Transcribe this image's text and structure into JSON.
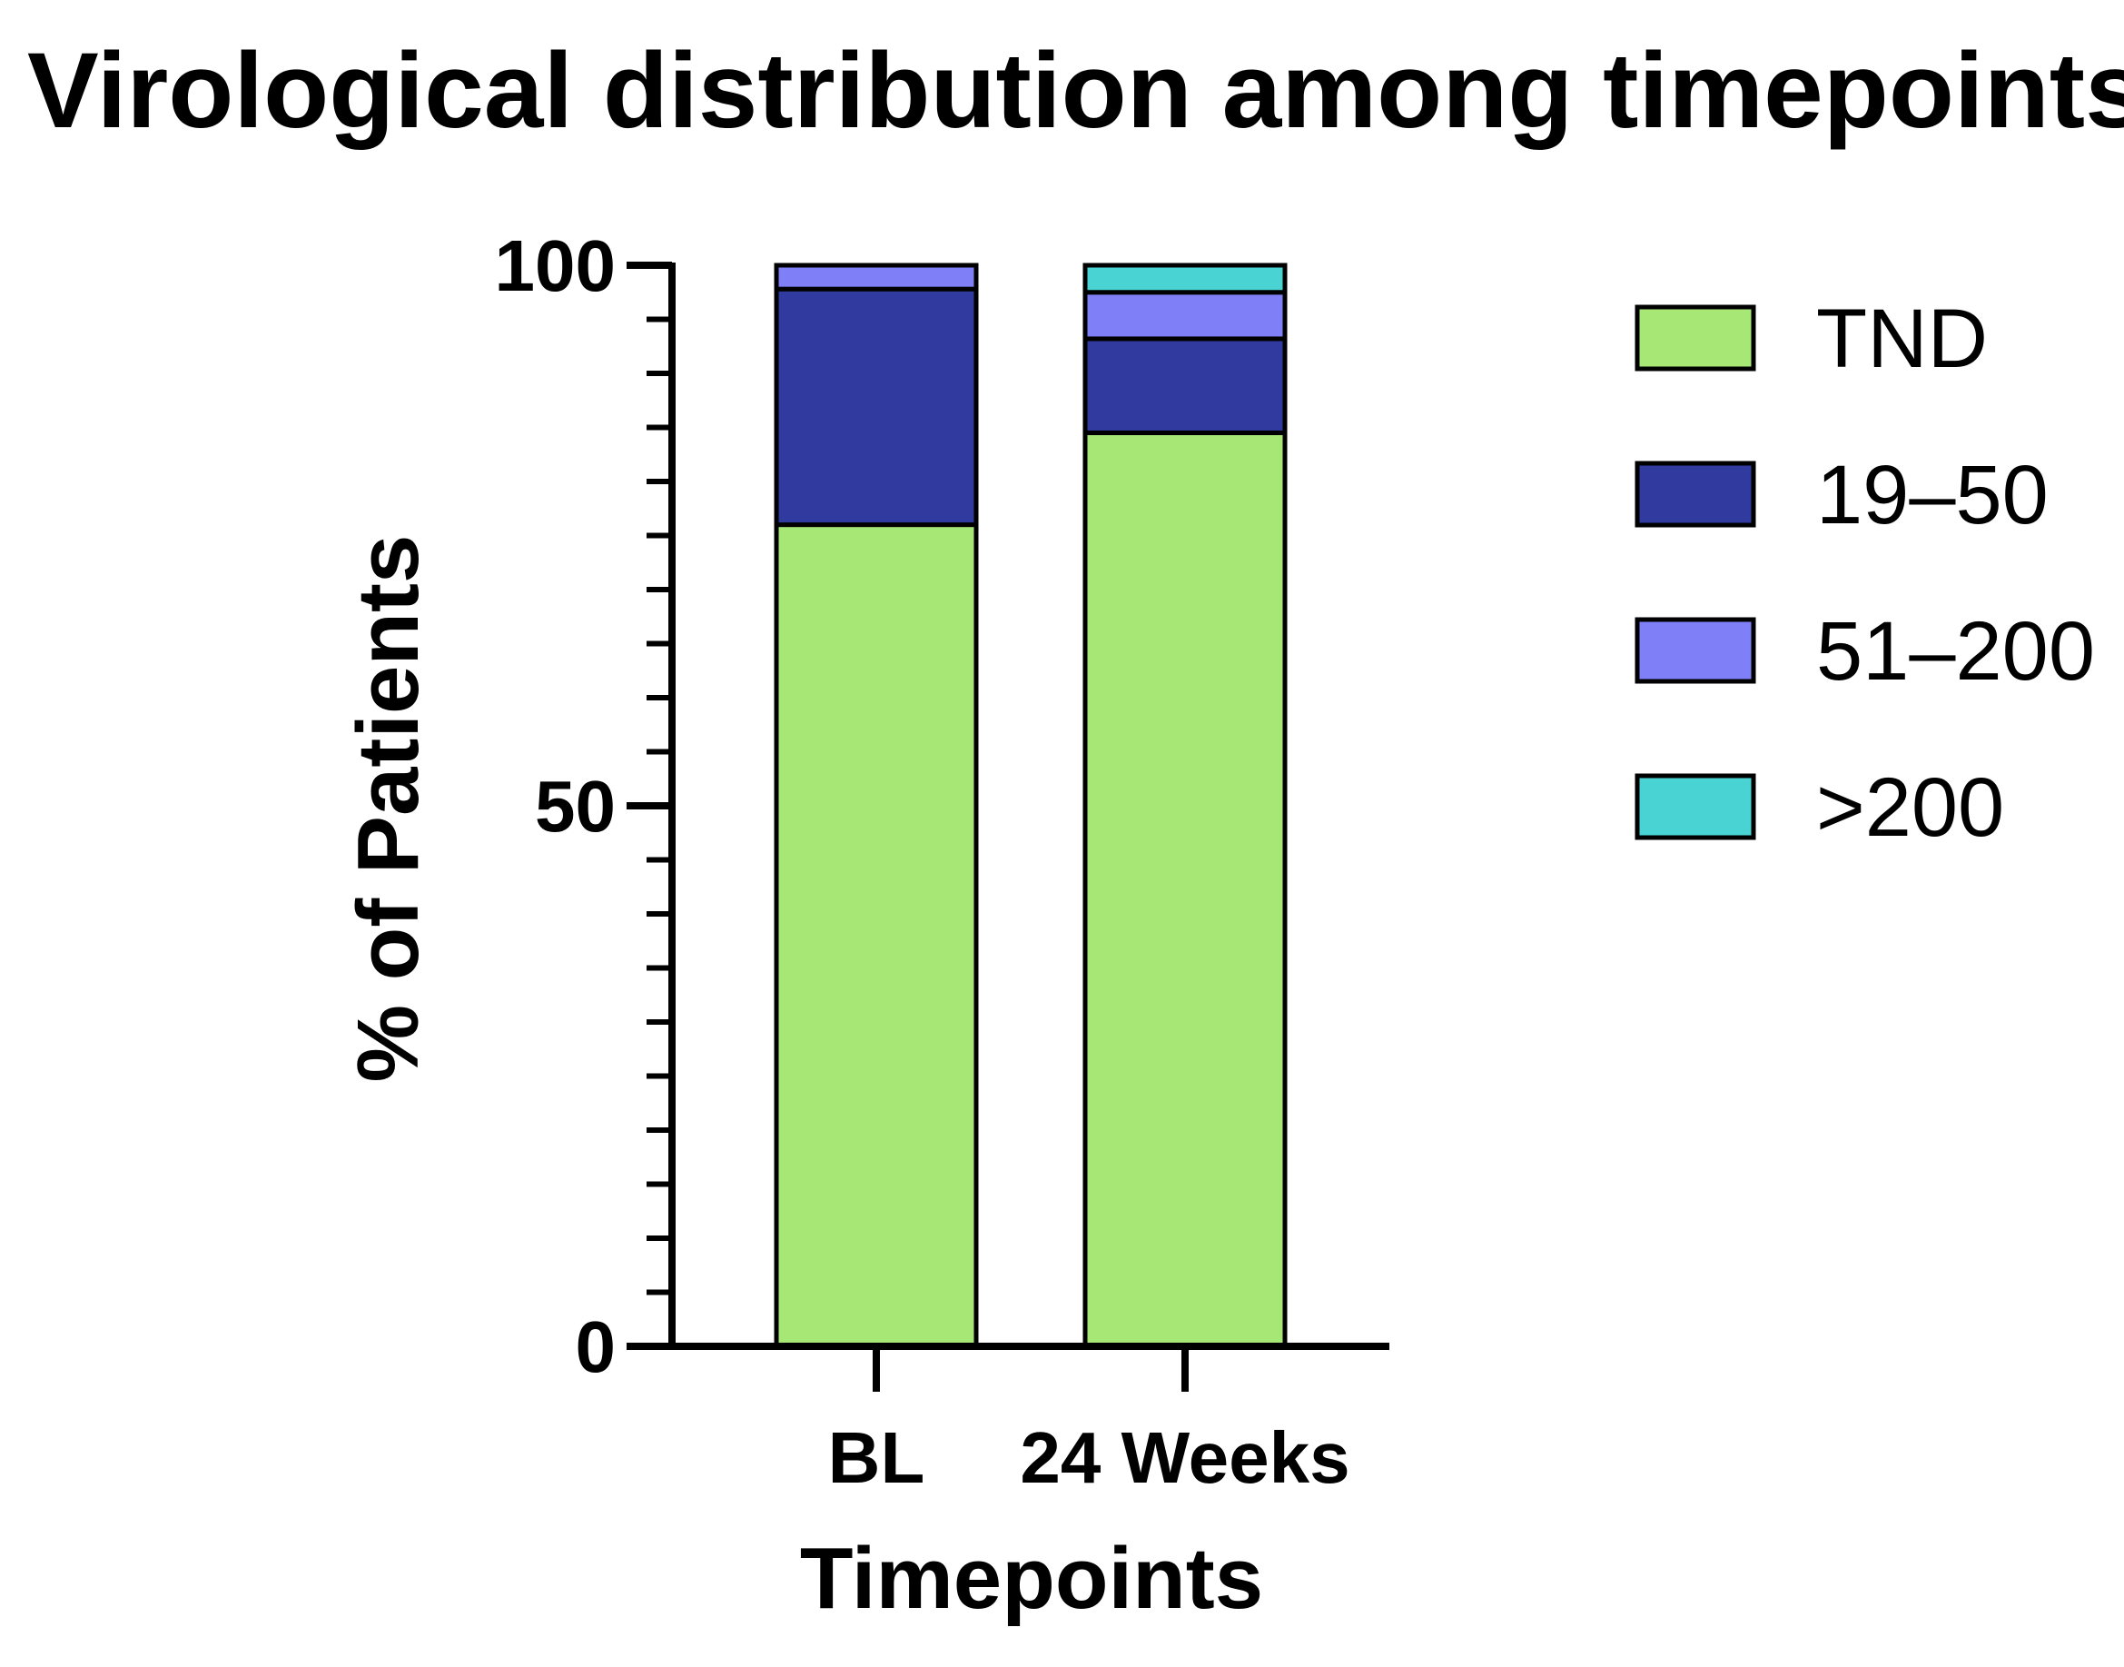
{
  "chart_data": {
    "type": "bar",
    "stacked": true,
    "title": "Virological distribution among timepoints",
    "xlabel": "Timepoints",
    "ylabel": "% of Patients",
    "categories": [
      "BL",
      "24 Weeks"
    ],
    "ylim": [
      0,
      100
    ],
    "yticks": [
      0,
      50,
      100
    ],
    "y_minor_step": 5,
    "legend_position": "right",
    "series": [
      {
        "name": "TND",
        "color": "#a6e776",
        "values": [
          76,
          84.5
        ]
      },
      {
        "name": "19–50",
        "color": "#303a9f",
        "values": [
          21.8,
          8.7
        ]
      },
      {
        "name": "51–200",
        "color": "#7f80f7",
        "values": [
          2.2,
          4.3
        ]
      },
      {
        "name": ">200",
        "color": "#49d3d3",
        "values": [
          0,
          2.5
        ]
      }
    ]
  }
}
